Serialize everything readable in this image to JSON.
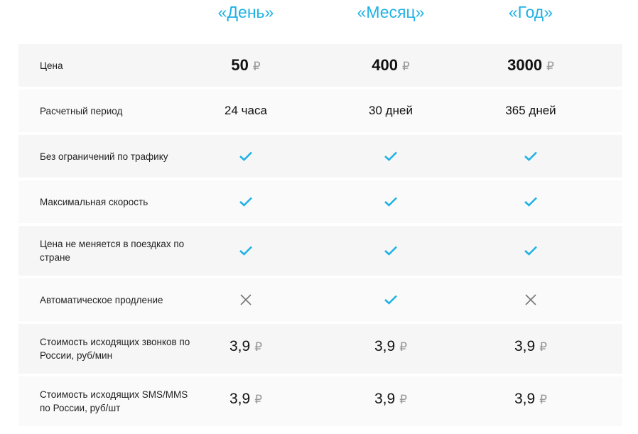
{
  "plans": [
    "«День»",
    "«Месяц»",
    "«Год»"
  ],
  "currency": "₽",
  "rows": [
    {
      "label": "Цена",
      "type": "price",
      "values": [
        "50",
        "400",
        "3000"
      ]
    },
    {
      "label": "Расчетный период",
      "type": "text",
      "values": [
        "24 часа",
        "30 дней",
        "365 дней"
      ]
    },
    {
      "label": "Без ограничений по трафику",
      "type": "bool",
      "values": [
        true,
        true,
        true
      ]
    },
    {
      "label": "Максимальная скорость",
      "type": "bool",
      "values": [
        true,
        true,
        true
      ]
    },
    {
      "label": "Цена не меняется в поездках по стране",
      "type": "bool",
      "values": [
        true,
        true,
        true
      ]
    },
    {
      "label": "Автоматическое продление",
      "type": "bool",
      "values": [
        false,
        true,
        false
      ]
    },
    {
      "label": "Стоимость исходящих звонков по России, руб/мин",
      "type": "money",
      "values": [
        "3,9",
        "3,9",
        "3,9"
      ]
    },
    {
      "label": "Стоимость исходящих SMS/MMS по России, руб/шт",
      "type": "money",
      "values": [
        "3,9",
        "3,9",
        "3,9"
      ]
    }
  ],
  "colors": {
    "accent": "#1fb2e6",
    "check": "#1fb2e6",
    "cross": "#777777"
  },
  "icons": {
    "yes": "check-icon",
    "no": "close-icon"
  }
}
